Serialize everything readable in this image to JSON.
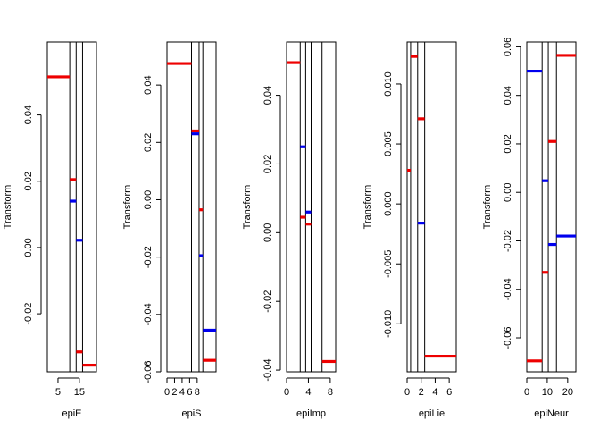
{
  "chart_data": [
    {
      "type": "step",
      "xlabel": "epiE",
      "ylabel": "Transform",
      "xlim": [
        0,
        23
      ],
      "ylim": [
        -0.0375,
        0.062
      ],
      "xticks": [
        5,
        15
      ],
      "yticks": [
        -0.02,
        0.0,
        0.02,
        0.04
      ],
      "ytick_labels": [
        "-0.02",
        "0.00",
        "0.02",
        "0.04"
      ],
      "vlines": [
        10.5,
        13.5,
        16.5
      ],
      "segments": [
        {
          "x": [
            0,
            10.5
          ],
          "y": 0.0515,
          "color": "red"
        },
        {
          "x": [
            10.5,
            13.5
          ],
          "y": 0.0205,
          "color": "red"
        },
        {
          "x": [
            10.5,
            13.5
          ],
          "y": 0.014,
          "color": "blue"
        },
        {
          "x": [
            13.5,
            16.5
          ],
          "y": 0.0022,
          "color": "blue"
        },
        {
          "x": [
            13.5,
            16.5
          ],
          "y": -0.0315,
          "color": "red"
        },
        {
          "x": [
            16.5,
            23
          ],
          "y": -0.0355,
          "color": "red"
        }
      ]
    },
    {
      "type": "step",
      "xlabel": "epiS",
      "ylabel": "Transform",
      "xlim": [
        0,
        13
      ],
      "ylim": [
        -0.06,
        0.055
      ],
      "xticks": [
        0,
        2,
        4,
        6,
        8
      ],
      "yticks": [
        -0.06,
        -0.04,
        -0.02,
        0.0,
        0.02,
        0.04
      ],
      "ytick_labels": [
        "-0.06",
        "-0.04",
        "-0.02",
        "0.00",
        "0.02",
        "0.04"
      ],
      "vlines": [
        6.5,
        8.5,
        9.5
      ],
      "segments": [
        {
          "x": [
            0,
            6.5
          ],
          "y": 0.0475,
          "color": "red"
        },
        {
          "x": [
            6.5,
            8.5
          ],
          "y": 0.024,
          "color": "red"
        },
        {
          "x": [
            6.5,
            8.5
          ],
          "y": 0.023,
          "color": "blue"
        },
        {
          "x": [
            8.5,
            9.5
          ],
          "y": -0.0035,
          "color": "red"
        },
        {
          "x": [
            8.5,
            9.5
          ],
          "y": -0.0195,
          "color": "blue"
        },
        {
          "x": [
            9.5,
            13
          ],
          "y": -0.0455,
          "color": "blue"
        },
        {
          "x": [
            9.5,
            13
          ],
          "y": -0.056,
          "color": "red"
        }
      ]
    },
    {
      "type": "step",
      "xlabel": "epiImp",
      "ylabel": "Transform",
      "xlim": [
        0,
        9
      ],
      "ylim": [
        -0.0405,
        0.0555
      ],
      "xticks": [
        0,
        4,
        8
      ],
      "xtick_labels": [
        "0",
        "4",
        "8"
      ],
      "yticks": [
        -0.04,
        -0.02,
        0.0,
        0.02,
        0.04
      ],
      "ytick_labels": [
        "-0.04",
        "-0.02",
        "0.00",
        "0.02",
        "0.04"
      ],
      "vlines": [
        2.5,
        3.5,
        4.5,
        6.5
      ],
      "segments": [
        {
          "x": [
            0,
            2.5
          ],
          "y": 0.0495,
          "color": "red"
        },
        {
          "x": [
            2.5,
            3.5
          ],
          "y": 0.025,
          "color": "blue"
        },
        {
          "x": [
            2.5,
            3.5
          ],
          "y": 0.0045,
          "color": "red"
        },
        {
          "x": [
            3.5,
            4.5
          ],
          "y": 0.006,
          "color": "blue"
        },
        {
          "x": [
            3.5,
            4.5
          ],
          "y": 0.0025,
          "color": "red"
        },
        {
          "x": [
            6.5,
            9
          ],
          "y": -0.0375,
          "color": "red"
        }
      ]
    },
    {
      "type": "step",
      "xlabel": "epiLie",
      "ylabel": "Transform",
      "xlim": [
        0,
        7
      ],
      "ylim": [
        -0.014,
        0.0135
      ],
      "xticks": [
        0,
        2,
        4,
        6
      ],
      "yticks": [
        -0.01,
        -0.005,
        0.0,
        0.005,
        0.01
      ],
      "ytick_labels": [
        "-0.010",
        "-0.005",
        "0.000",
        "0.005",
        "0.010"
      ],
      "vlines": [
        0.5,
        1.5,
        2.5
      ],
      "segments": [
        {
          "x": [
            0,
            0.5
          ],
          "y": 0.0028,
          "color": "red"
        },
        {
          "x": [
            0.5,
            1.5
          ],
          "y": 0.0123,
          "color": "red"
        },
        {
          "x": [
            1.5,
            2.5
          ],
          "y": 0.0071,
          "color": "red"
        },
        {
          "x": [
            1.5,
            2.5
          ],
          "y": -0.0016,
          "color": "blue"
        },
        {
          "x": [
            2.5,
            7
          ],
          "y": -0.0127,
          "color": "red"
        }
      ]
    },
    {
      "type": "step",
      "xlabel": "epiNeur",
      "ylabel": "Transform",
      "xlim": [
        0,
        24
      ],
      "ylim": [
        -0.074,
        0.062
      ],
      "xticks": [
        0,
        10,
        20
      ],
      "yticks": [
        -0.06,
        -0.04,
        -0.02,
        0.0,
        0.02,
        0.04,
        0.06
      ],
      "ytick_labels": [
        "-0.06",
        "-0.04",
        "-0.02",
        "0.00",
        "0.02",
        "0.04",
        "0.06"
      ],
      "vlines": [
        7.5,
        10.5,
        14.5
      ],
      "segments": [
        {
          "x": [
            0,
            7.5
          ],
          "y": 0.05,
          "color": "blue"
        },
        {
          "x": [
            0,
            7.5
          ],
          "y": -0.0695,
          "color": "red"
        },
        {
          "x": [
            7.5,
            10.5
          ],
          "y": 0.0048,
          "color": "blue"
        },
        {
          "x": [
            7.5,
            10.5
          ],
          "y": -0.033,
          "color": "red"
        },
        {
          "x": [
            10.5,
            14.5
          ],
          "y": 0.021,
          "color": "red"
        },
        {
          "x": [
            10.5,
            14.5
          ],
          "y": -0.0215,
          "color": "blue"
        },
        {
          "x": [
            14.5,
            24
          ],
          "y": 0.0565,
          "color": "red"
        },
        {
          "x": [
            14.5,
            24
          ],
          "y": -0.018,
          "color": "blue"
        }
      ]
    }
  ],
  "colors": {
    "red": "#ee0000",
    "blue": "#0000ee",
    "frame": "#000000"
  }
}
